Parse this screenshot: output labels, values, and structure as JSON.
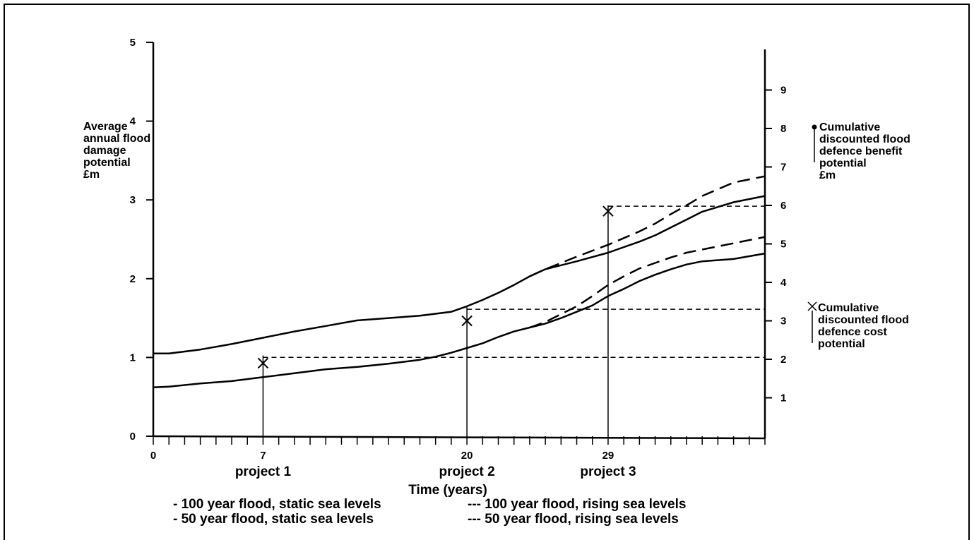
{
  "chart_data": {
    "type": "line",
    "xlabel": "Time (years)",
    "xlim": [
      0,
      39
    ],
    "x_ticks_labeled": [
      0,
      7,
      20,
      29
    ],
    "ylabel_left": [
      "Average",
      "annual flood",
      "damage",
      "potential",
      "£m"
    ],
    "ylim_left": [
      0,
      5
    ],
    "y_ticks_left": [
      0,
      1,
      2,
      3,
      4,
      5
    ],
    "ylabel_right_benefit": [
      "Cumulative",
      "discounted flood",
      "defence benefit",
      "potential",
      "£m"
    ],
    "ylabel_right_cost": [
      "Cumulative",
      "discounted  flood",
      "defence cost",
      "potential"
    ],
    "ylim_right": [
      0,
      10.5
    ],
    "y_ticks_right": [
      1,
      2,
      3,
      4,
      5,
      6,
      7,
      8,
      9
    ],
    "series": [
      {
        "name": "100 year flood, static sea levels",
        "style": "solid",
        "x": [
          0,
          1,
          3,
          5,
          7,
          9,
          11,
          13,
          15,
          17,
          19,
          20,
          21,
          22,
          23,
          24,
          25,
          27,
          29,
          31,
          32,
          33,
          34,
          35,
          37,
          39
        ],
        "y": [
          1.05,
          1.05,
          1.1,
          1.17,
          1.25,
          1.33,
          1.4,
          1.47,
          1.5,
          1.53,
          1.58,
          1.65,
          1.73,
          1.82,
          1.92,
          2.03,
          2.12,
          2.22,
          2.33,
          2.47,
          2.55,
          2.65,
          2.75,
          2.85,
          2.97,
          3.05
        ]
      },
      {
        "name": "50 year flood, static sea levels",
        "style": "solid",
        "x": [
          0,
          1,
          3,
          5,
          7,
          9,
          11,
          13,
          15,
          17,
          18,
          19,
          20,
          21,
          22,
          23,
          24,
          25,
          26,
          27,
          28,
          29,
          30,
          31,
          32,
          33,
          34,
          35,
          37,
          39
        ],
        "y": [
          0.62,
          0.63,
          0.67,
          0.7,
          0.75,
          0.8,
          0.85,
          0.88,
          0.92,
          0.97,
          1.01,
          1.06,
          1.12,
          1.18,
          1.26,
          1.33,
          1.38,
          1.43,
          1.5,
          1.58,
          1.66,
          1.78,
          1.87,
          1.97,
          2.05,
          2.12,
          2.18,
          2.22,
          2.25,
          2.32
        ]
      },
      {
        "name": "100 year flood, rising sea levels",
        "style": "dashed",
        "x": [
          24,
          25,
          27,
          29,
          31,
          32,
          33,
          34,
          35,
          37,
          39
        ],
        "y": [
          2.03,
          2.12,
          2.28,
          2.43,
          2.6,
          2.7,
          2.82,
          2.93,
          3.05,
          3.22,
          3.3
        ]
      },
      {
        "name": "50 year flood, rising sea levels",
        "style": "dashed",
        "x": [
          24,
          25,
          26,
          27,
          28,
          29,
          30,
          31,
          32,
          33,
          34,
          35,
          37,
          39
        ],
        "y": [
          1.38,
          1.45,
          1.55,
          1.65,
          1.78,
          1.92,
          2.03,
          2.13,
          2.2,
          2.27,
          2.33,
          2.37,
          2.45,
          2.53
        ]
      }
    ],
    "projects": [
      {
        "label": "project 1",
        "year": 7,
        "cost_marker_y_right": 1.9,
        "benefit_marker_y_right": 2.1
      },
      {
        "label": "project 2",
        "year": 20,
        "cost_marker_y_right": 3.0,
        "benefit_marker_y_right": 3.35
      },
      {
        "label": "project 3",
        "year": 29,
        "cost_marker_y_right": 5.85,
        "benefit_marker_y_right": 6.0
      }
    ],
    "dashed_benefit_lines_right": [
      2.05,
      3.3,
      5.98
    ],
    "legend": [
      "- 100 year flood, static sea levels",
      "- 50 year flood, static sea levels",
      "--- 100 year flood, rising sea levels",
      "--- 50 year flood, rising sea levels"
    ]
  }
}
